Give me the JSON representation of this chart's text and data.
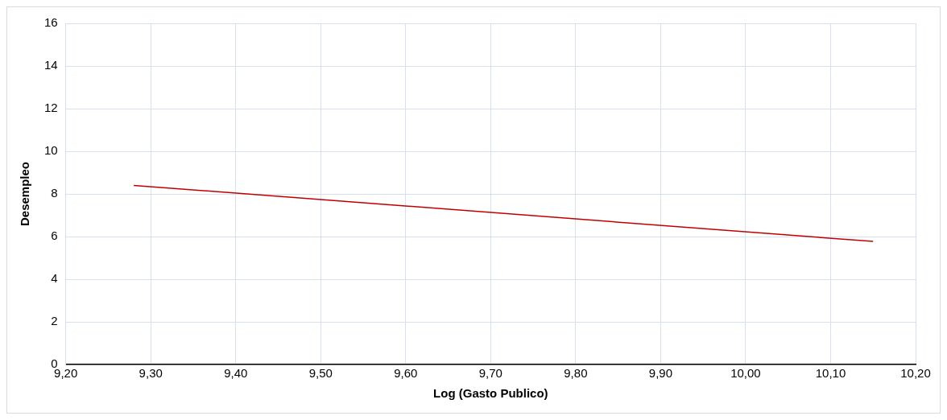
{
  "chart_data": {
    "type": "line",
    "xlabel": "Log (Gasto Publico)",
    "ylabel": "Desempleo",
    "series": [
      {
        "color": "#c00000",
        "x": [
          9.28,
          10.15
        ],
        "values": [
          8.4,
          5.77
        ]
      }
    ],
    "xlim": [
      9.2,
      10.2
    ],
    "xticks": [
      {
        "value": 9.2,
        "label": "9,20"
      },
      {
        "value": 9.3,
        "label": "9,30"
      },
      {
        "value": 9.4,
        "label": "9,40"
      },
      {
        "value": 9.5,
        "label": "9,50"
      },
      {
        "value": 9.6,
        "label": "9,60"
      },
      {
        "value": 9.7,
        "label": "9,70"
      },
      {
        "value": 9.8,
        "label": "9,80"
      },
      {
        "value": 9.9,
        "label": "9,90"
      },
      {
        "value": 10.0,
        "label": "10,00"
      },
      {
        "value": 10.1,
        "label": "10,10"
      },
      {
        "value": 10.2,
        "label": "10,20"
      }
    ],
    "ylim": [
      0,
      16
    ],
    "yticks": [
      0,
      2,
      4,
      6,
      8,
      10,
      12,
      14,
      16
    ],
    "grid": true,
    "legend": false,
    "marker": "none",
    "line_style": "solid"
  }
}
